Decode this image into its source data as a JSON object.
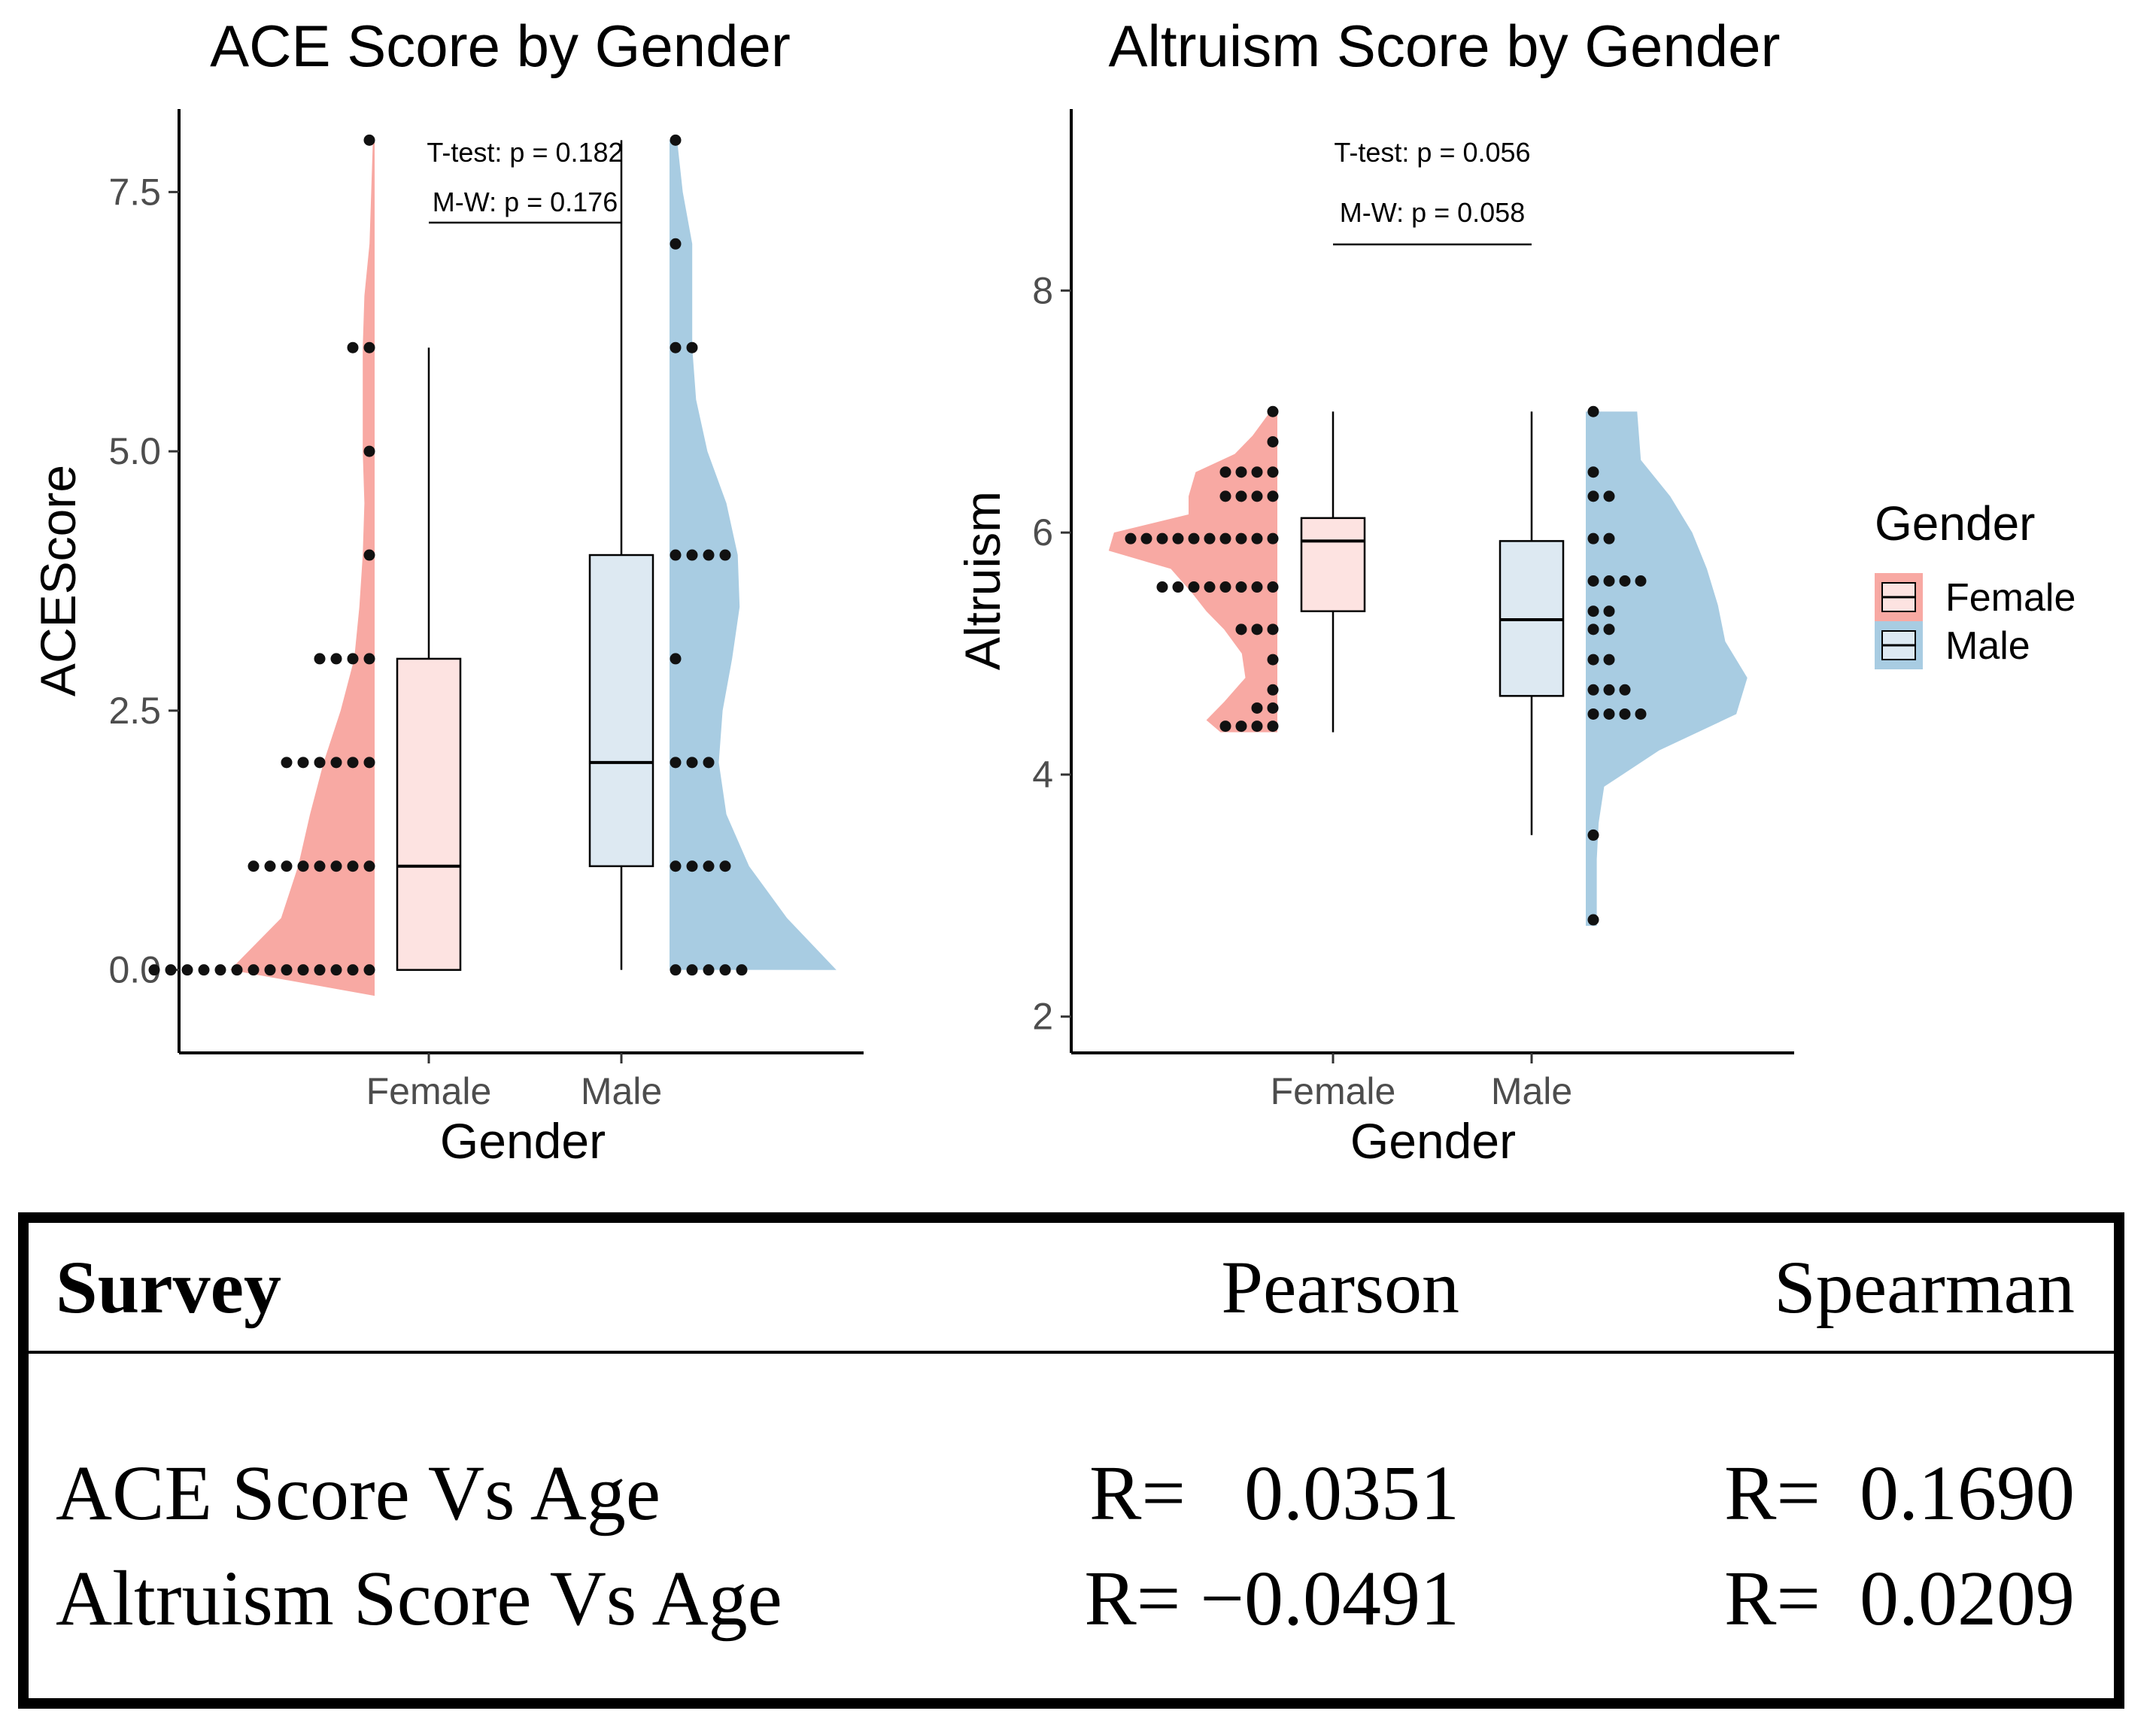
{
  "chart_data": [
    {
      "type": "raincloud",
      "title": "ACE Score by Gender",
      "xlabel": "Gender",
      "ylabel": "ACEScore",
      "categories": [
        "Female",
        "Male"
      ],
      "ylim": [
        -0.8,
        8.3
      ],
      "yticks": [
        0.0,
        2.5,
        5.0,
        7.5
      ],
      "ytick_labels": [
        "0.0",
        "2.5",
        "5.0",
        "7.5"
      ],
      "annotations": [
        "T-test: p = 0.182",
        "M-W: p = 0.176"
      ],
      "series": [
        {
          "name": "Female",
          "box": {
            "min": 0,
            "q1": 0,
            "median": 1,
            "q3": 3,
            "max": 6
          },
          "dot_counts": [
            [
              0,
              14
            ],
            [
              1,
              8
            ],
            [
              2,
              6
            ],
            [
              3,
              4
            ],
            [
              4,
              1
            ],
            [
              5,
              1
            ],
            [
              6,
              2
            ],
            [
              8,
              1
            ]
          ],
          "density": [
            [
              -0.25,
              0.0
            ],
            [
              0,
              0.85
            ],
            [
              0.5,
              0.55
            ],
            [
              1,
              0.45
            ],
            [
              1.5,
              0.38
            ],
            [
              2,
              0.3
            ],
            [
              2.5,
              0.2
            ],
            [
              3,
              0.12
            ],
            [
              3.5,
              0.09
            ],
            [
              4,
              0.07
            ],
            [
              4.5,
              0.06
            ],
            [
              5,
              0.07
            ],
            [
              5.5,
              0.07
            ],
            [
              6,
              0.07
            ],
            [
              6.5,
              0.06
            ],
            [
              7,
              0.03
            ],
            [
              8,
              0.01
            ]
          ]
        },
        {
          "name": "Male",
          "box": {
            "min": 0,
            "q1": 1,
            "median": 2,
            "q3": 4,
            "max": 8
          },
          "dot_counts": [
            [
              0,
              5
            ],
            [
              1,
              4
            ],
            [
              2,
              3
            ],
            [
              3,
              1
            ],
            [
              4,
              4
            ],
            [
              6,
              2
            ],
            [
              7,
              1
            ],
            [
              8,
              1
            ]
          ],
          "density": [
            [
              0,
              0.88
            ],
            [
              0.5,
              0.62
            ],
            [
              1,
              0.42
            ],
            [
              1.5,
              0.3
            ],
            [
              2,
              0.26
            ],
            [
              2.5,
              0.28
            ],
            [
              3,
              0.33
            ],
            [
              3.5,
              0.37
            ],
            [
              4,
              0.36
            ],
            [
              4.5,
              0.3
            ],
            [
              5,
              0.2
            ],
            [
              5.5,
              0.14
            ],
            [
              6,
              0.12
            ],
            [
              6.5,
              0.12
            ],
            [
              7,
              0.12
            ],
            [
              7.5,
              0.07
            ],
            [
              8,
              0.04
            ]
          ]
        }
      ]
    },
    {
      "type": "raincloud",
      "title": "Altruism Score by Gender",
      "xlabel": "Gender",
      "ylabel": "Altruism",
      "categories": [
        "Female",
        "Male"
      ],
      "ylim": [
        1.7,
        9.5
      ],
      "yticks": [
        2,
        4,
        6,
        8
      ],
      "ytick_labels": [
        "2",
        "4",
        "6",
        "8"
      ],
      "annotations": [
        "T-test: p = 0.056",
        "M-W: p = 0.058"
      ],
      "series": [
        {
          "name": "Female",
          "box": {
            "min": 4.35,
            "q1": 5.35,
            "median": 5.93,
            "q3": 6.12,
            "max": 7.0
          },
          "dot_counts": [
            [
              4.4,
              4
            ],
            [
              4.55,
              2
            ],
            [
              4.7,
              1
            ],
            [
              4.95,
              1
            ],
            [
              5.2,
              3
            ],
            [
              5.55,
              8
            ],
            [
              5.95,
              10
            ],
            [
              6.3,
              4
            ],
            [
              6.5,
              4
            ],
            [
              6.75,
              1
            ],
            [
              7.0,
              1
            ]
          ],
          "density": [
            [
              4.35,
              0.32
            ],
            [
              4.45,
              0.4
            ],
            [
              4.6,
              0.3
            ],
            [
              4.8,
              0.18
            ],
            [
              5.0,
              0.2
            ],
            [
              5.2,
              0.3
            ],
            [
              5.35,
              0.4
            ],
            [
              5.5,
              0.48
            ],
            [
              5.7,
              0.6
            ],
            [
              5.85,
              0.95
            ],
            [
              6.0,
              0.92
            ],
            [
              6.15,
              0.5
            ],
            [
              6.3,
              0.5
            ],
            [
              6.5,
              0.46
            ],
            [
              6.65,
              0.24
            ],
            [
              6.8,
              0.14
            ],
            [
              7.0,
              0.04
            ]
          ]
        },
        {
          "name": "Male",
          "box": {
            "min": 3.5,
            "q1": 4.65,
            "median": 5.28,
            "q3": 5.93,
            "max": 7.0
          },
          "dot_counts": [
            [
              2.8,
              1
            ],
            [
              3.5,
              1
            ],
            [
              4.5,
              4
            ],
            [
              4.7,
              3
            ],
            [
              4.95,
              2
            ],
            [
              5.2,
              2
            ],
            [
              5.35,
              2
            ],
            [
              5.6,
              4
            ],
            [
              5.95,
              2
            ],
            [
              6.3,
              2
            ],
            [
              6.5,
              1
            ],
            [
              7.0,
              1
            ]
          ],
          "density": [
            [
              2.75,
              0.06
            ],
            [
              3.0,
              0.06
            ],
            [
              3.3,
              0.06
            ],
            [
              3.6,
              0.07
            ],
            [
              3.9,
              0.1
            ],
            [
              4.2,
              0.4
            ],
            [
              4.5,
              0.82
            ],
            [
              4.8,
              0.88
            ],
            [
              5.1,
              0.76
            ],
            [
              5.4,
              0.72
            ],
            [
              5.7,
              0.66
            ],
            [
              6.0,
              0.58
            ],
            [
              6.3,
              0.46
            ],
            [
              6.6,
              0.3
            ],
            [
              7.0,
              0.28
            ]
          ]
        }
      ]
    }
  ],
  "legend": {
    "title": "Gender",
    "items": [
      {
        "label": "Female",
        "fill": "#fde3e1",
        "stroke": "#f3908a"
      },
      {
        "label": "Male",
        "fill": "#dde9f2",
        "stroke": "#8cb8d6"
      }
    ]
  },
  "colors": {
    "female_cloud": "#f8a9a3",
    "female_box": "#fde3e1",
    "male_cloud": "#a8cce2",
    "male_box": "#dde9f2",
    "dot": "#111111",
    "axis": "#000000"
  },
  "table": {
    "headers": {
      "survey": "Survey",
      "pearson": "Pearson",
      "spearman": "Spearman"
    },
    "rows": [
      {
        "label": "ACE Score Vs Age",
        "pearson": "R=   0.0351",
        "spearman": "R=  0.1690"
      },
      {
        "label": "Altruism Score Vs Age",
        "pearson": "R= −0.0491",
        "spearman": "R=  0.0209"
      }
    ]
  }
}
